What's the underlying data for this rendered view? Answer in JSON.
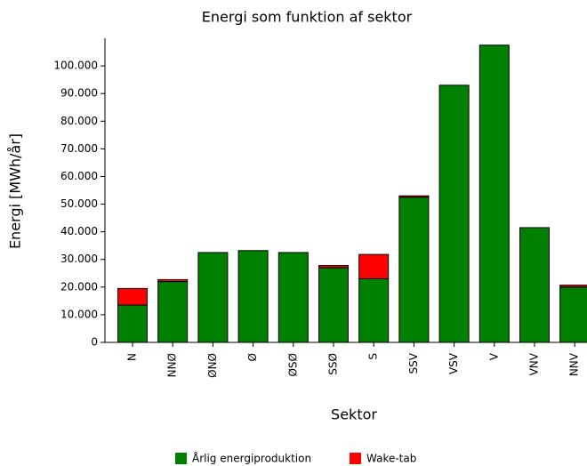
{
  "chart_data": {
    "type": "stacked_bar",
    "title": "Energi som funktion af sektor",
    "xlabel": "Sektor",
    "ylabel": "Energi [MWh/år]",
    "categories": [
      "N",
      "NNØ",
      "ØNØ",
      "Ø",
      "ØSØ",
      "SSØ",
      "S",
      "SSV",
      "VSV",
      "V",
      "VNV",
      "NNV"
    ],
    "series": [
      {
        "name": "Årlig energiproduktion",
        "color": "#008000",
        "values": [
          13500,
          22000,
          32500,
          33200,
          32500,
          27000,
          23000,
          52500,
          93000,
          107500,
          41500,
          20000
        ]
      },
      {
        "name": "Wake-tab",
        "color": "#ff0000",
        "values": [
          6000,
          700,
          0,
          0,
          0,
          800,
          8800,
          500,
          0,
          0,
          0,
          700
        ]
      }
    ],
    "ylim": [
      0,
      110000
    ],
    "yticks": [
      0,
      {
        "value": 10000,
        "label": "10.000"
      },
      {
        "value": 20000,
        "label": "20.000"
      },
      {
        "value": 30000,
        "label": "30.000"
      },
      {
        "value": 40000,
        "label": "40.000"
      },
      {
        "value": 50000,
        "label": "50.000"
      },
      {
        "value": 60000,
        "label": "60.000"
      },
      {
        "value": 70000,
        "label": "70.000"
      },
      {
        "value": 80000,
        "label": "80.000"
      },
      {
        "value": 90000,
        "label": "90.000"
      },
      {
        "value": 100000,
        "label": "100.000"
      }
    ]
  }
}
